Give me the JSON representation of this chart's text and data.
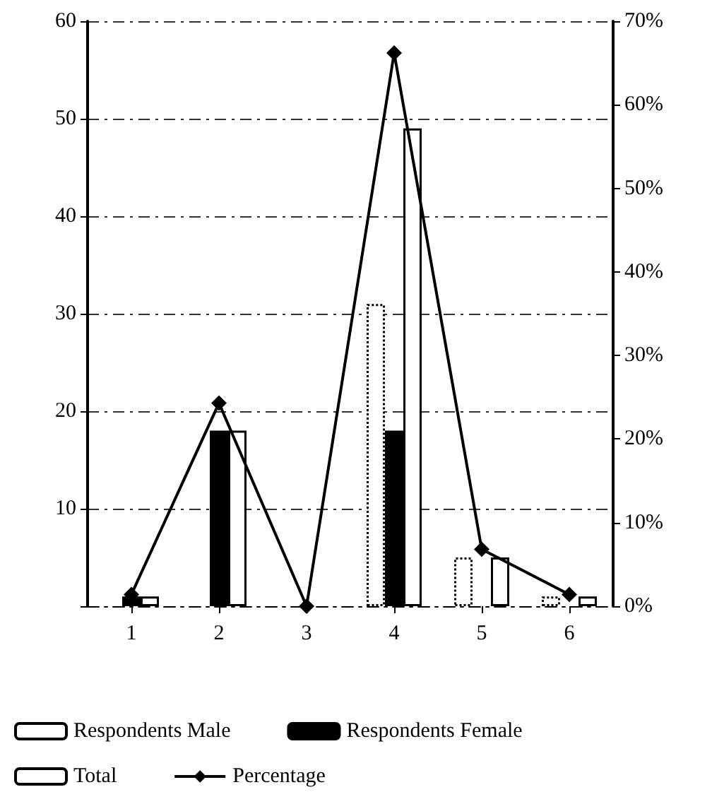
{
  "chart_data": {
    "type": "bar",
    "categories": [
      "1",
      "2",
      "3",
      "4",
      "5",
      "6"
    ],
    "series": [
      {
        "name": "Respondents Male",
        "color": "#ffffff",
        "values": [
          0,
          0,
          0,
          31,
          5,
          1
        ]
      },
      {
        "name": "Respondents Female",
        "color": "#000000",
        "values": [
          1,
          18,
          0,
          18,
          0,
          0
        ]
      },
      {
        "name": "Total",
        "color": "#ffffff",
        "values": [
          1,
          18,
          0,
          49,
          5,
          1
        ]
      },
      {
        "name": "Percentage",
        "type": "line",
        "axis": "y2",
        "color": "#000000",
        "marker": "diamond",
        "values": [
          1.4,
          24.3,
          0,
          66.2,
          6.8,
          1.4
        ]
      }
    ],
    "ylim": [
      0,
      60
    ],
    "yticks": [
      {
        "value": 0,
        "label": null
      },
      10,
      20,
      30,
      40,
      50,
      60
    ],
    "y2lim": [
      0,
      70
    ],
    "y2ticks": [
      {
        "value": 0,
        "label": "0%"
      },
      {
        "value": 10,
        "label": "10%"
      },
      {
        "value": 20,
        "label": "20%"
      },
      {
        "value": 30,
        "label": "30%"
      },
      {
        "value": 40,
        "label": "40%"
      },
      {
        "value": 50,
        "label": "50%"
      },
      {
        "value": 60,
        "label": "60%"
      },
      {
        "value": 70,
        "label": "70%"
      }
    ],
    "grid": "y",
    "legend": "bottom"
  }
}
